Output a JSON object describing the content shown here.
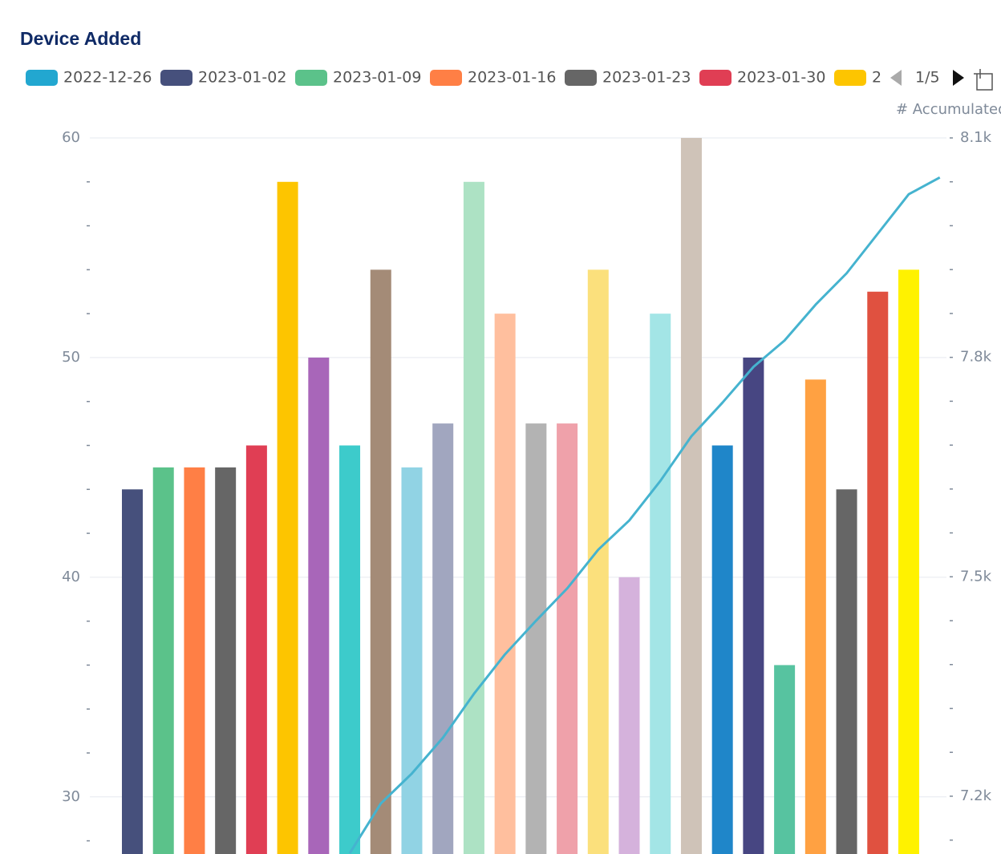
{
  "chart_data": {
    "type": "bar_line",
    "title": "Device Added",
    "y2_title": "# Accumulated",
    "legend_page": "1/5",
    "legend": [
      {
        "name": "2022-12-26",
        "color": "#22a7d0"
      },
      {
        "name": "2023-01-02",
        "color": "#46507c"
      },
      {
        "name": "2023-01-09",
        "color": "#5bc28a"
      },
      {
        "name": "2023-01-16",
        "color": "#ff7f45"
      },
      {
        "name": "2023-01-23",
        "color": "#666666"
      },
      {
        "name": "2023-01-30",
        "color": "#e03e54"
      },
      {
        "name": "2",
        "color": "#fdc500"
      }
    ],
    "categories": [
      null,
      null,
      null,
      null,
      null,
      null,
      null,
      null,
      null,
      null,
      null,
      null,
      null,
      null,
      null,
      null,
      null,
      null,
      null,
      null,
      null,
      null,
      null,
      null,
      null,
      null,
      null
    ],
    "bars": {
      "values": [
        44,
        45,
        45,
        45,
        46,
        58,
        50,
        46,
        54,
        45,
        47,
        58,
        52,
        47,
        47,
        54,
        40,
        52,
        60,
        46,
        50,
        36,
        49,
        44,
        53,
        54,
        null
      ],
      "colors": [
        "#46507c",
        "#5bc28a",
        "#ff7f45",
        "#666666",
        "#e03e54",
        "#fdc500",
        "#a866b9",
        "#3dcbcb",
        "#a48b77",
        "#91d3e4",
        "#a1a6bf",
        "#ade2c4",
        "#ffbf9e",
        "#b3b3b3",
        "#efa1aa",
        "#fbe07c",
        "#d5b2dc",
        "#a3e5e6",
        "#cfc3b8",
        "#1f86c9",
        "#474682",
        "#57c3a0",
        "#ffa142",
        "#666666",
        "#e05140",
        "#fff200",
        "#cccccc"
      ]
    },
    "line": {
      "axis": "y2",
      "color": "#45b3cf",
      "values": [
        null,
        null,
        null,
        null,
        null,
        null,
        null,
        7122,
        7190,
        7231,
        7280,
        7340,
        7394,
        7440,
        7484,
        7537,
        7577,
        7631,
        7692,
        7738,
        7787,
        7823,
        7872,
        7915,
        7969,
        8023,
        8046
      ]
    },
    "ylim": [
      27.4,
      60
    ],
    "yticks": [
      30,
      40,
      50,
      60
    ],
    "y_minor_ticks": [
      28,
      32,
      34,
      36,
      38,
      42,
      44,
      46,
      48,
      52,
      54,
      56,
      58
    ],
    "y2lim": [
      7121,
      8100
    ],
    "y2ticks": [
      {
        "value": 7200,
        "label": "7.2k"
      },
      {
        "value": 7500,
        "label": "7.5k"
      },
      {
        "value": 7800,
        "label": "7.8k"
      },
      {
        "value": 8100,
        "label": "8.1k"
      }
    ],
    "y2_minor_ticks": [
      7140,
      7260,
      7320,
      7380,
      7440,
      7560,
      7620,
      7680,
      7740,
      7860,
      7920,
      7980,
      8040
    ],
    "grid": true
  }
}
